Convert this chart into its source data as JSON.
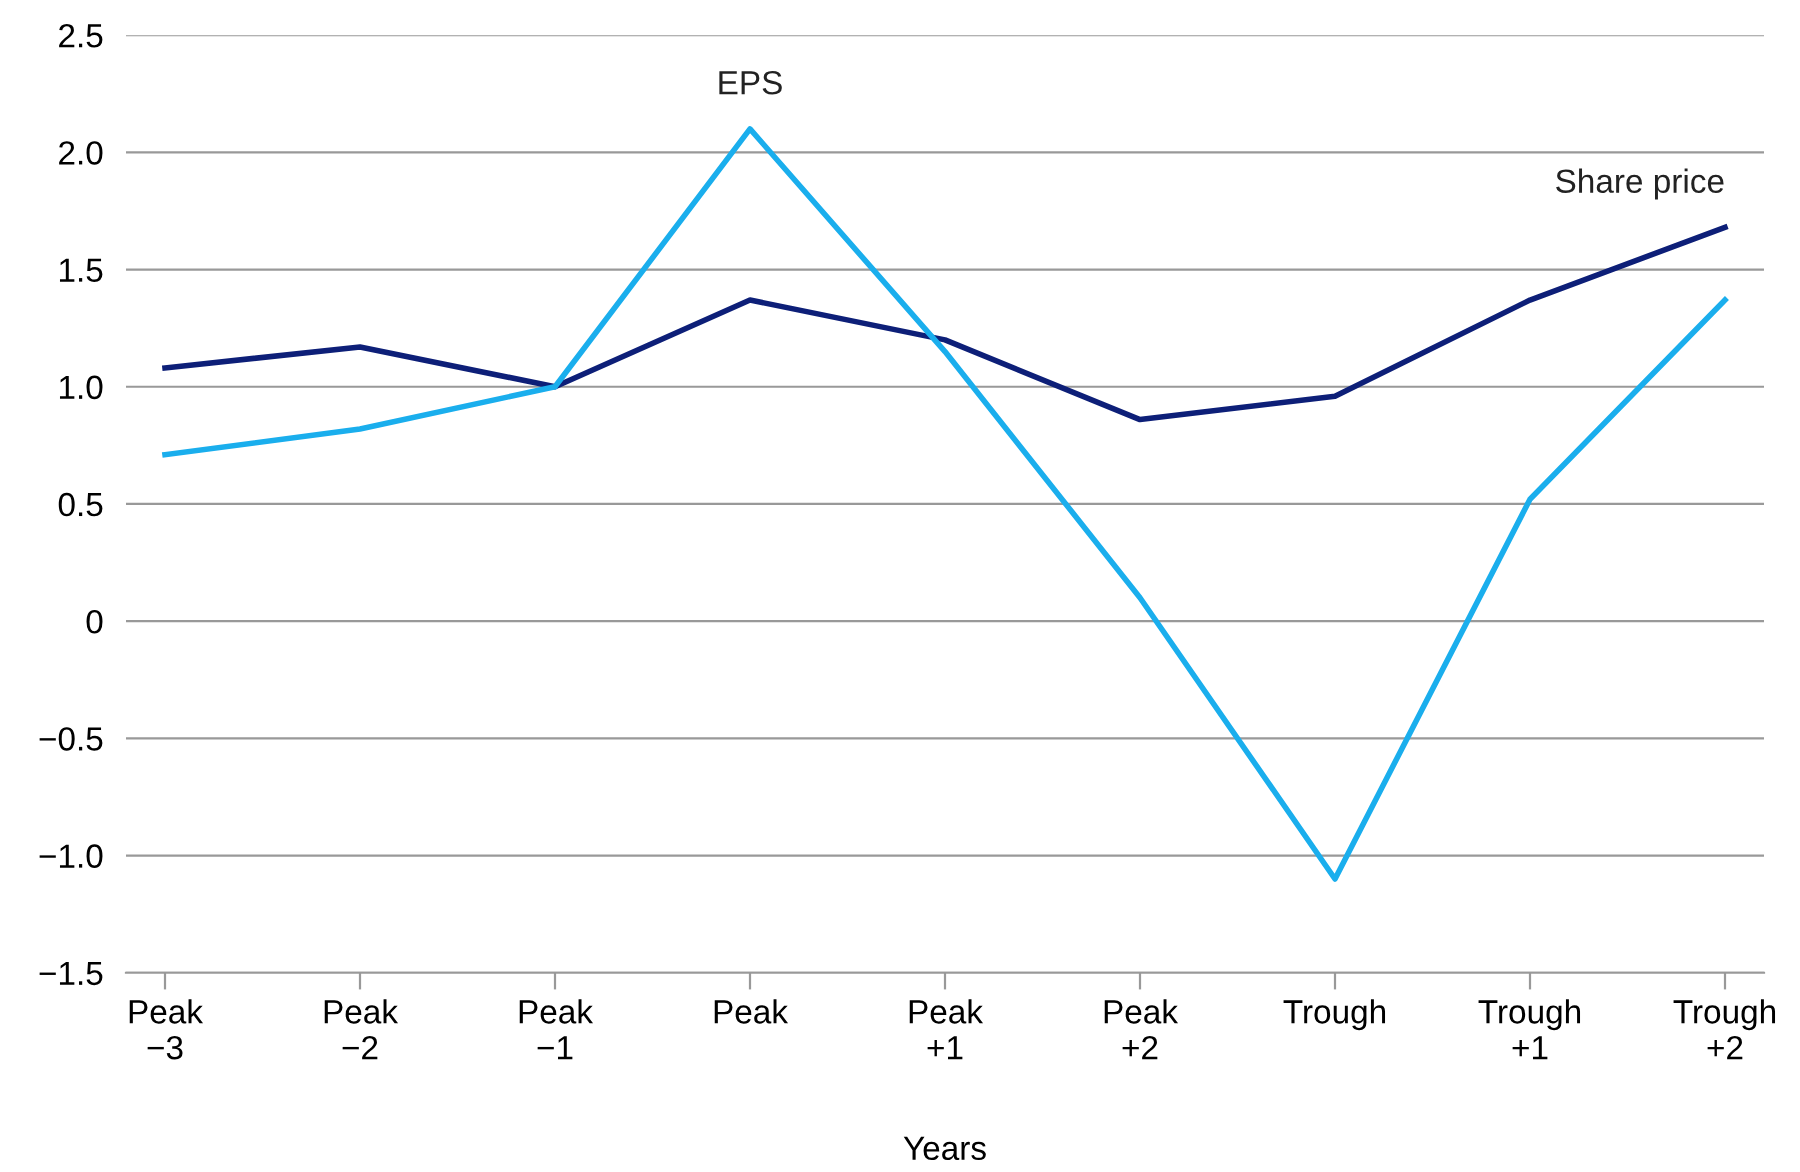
{
  "chart_data": {
    "type": "line",
    "xlabel": "Years",
    "categories": [
      "Peak\n−3",
      "Peak\n−2",
      "Peak\n−1",
      "Peak",
      "Peak\n+1",
      "Peak\n+2",
      "Trough",
      "Trough\n+1",
      "Trough\n+2"
    ],
    "series": [
      {
        "name": "Share price",
        "color": "#0d1f78",
        "values": [
          1.08,
          1.17,
          1.0,
          1.37,
          1.2,
          0.86,
          0.96,
          1.37,
          1.68
        ]
      },
      {
        "name": "EPS",
        "color": "#1aaeed",
        "values": [
          0.71,
          0.82,
          1.0,
          2.1,
          1.15,
          0.1,
          -1.1,
          0.52,
          1.37
        ]
      }
    ],
    "ylim": [
      -1.5,
      2.5
    ],
    "yticks": [
      {
        "value": -1.5,
        "label": "−1.5"
      },
      {
        "value": -1.0,
        "label": "−1.0"
      },
      {
        "value": -0.5,
        "label": "−0.5"
      },
      0,
      {
        "value": 0.5,
        "label": "0.5"
      },
      {
        "value": 1.0,
        "label": "1.0"
      },
      {
        "value": 1.5,
        "label": "1.5"
      },
      {
        "value": 2.0,
        "label": "2.0"
      },
      {
        "value": 2.5,
        "label": "2.5"
      }
    ],
    "grid": "y",
    "marker": "none",
    "line_style": "solid"
  }
}
